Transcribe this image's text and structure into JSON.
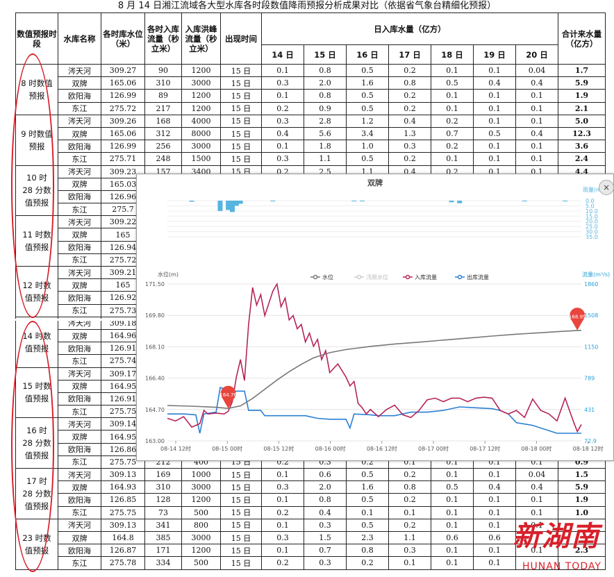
{
  "title": "8 月 14 日湘江流域各大型水库各时段数值降雨预报分析成果对比（依据省气象台精细化预报）",
  "headers": {
    "period": "数值预报时段",
    "reservoir": "水库名称",
    "level": "各时库水位（米）",
    "inflow": "各时入库流量（秒立米）",
    "peak": "入库洪峰流量（秒立米）",
    "time": "出现时间",
    "daily": "日入库水量（亿方）",
    "total": "合计来水量（亿方）",
    "days": [
      "14 日",
      "15 日",
      "16 日",
      "17 日",
      "18 日",
      "19 日",
      "20 日"
    ]
  },
  "groups": [
    {
      "period": "8 时数值预报",
      "rows": [
        [
          "涔天河",
          "309.27",
          "90",
          "1200",
          "15 日",
          "0.1",
          "0.8",
          "0.5",
          "0.2",
          "0.1",
          "0.1",
          "0.04",
          "1.7"
        ],
        [
          "双牌",
          "165.06",
          "310",
          "3000",
          "15 日",
          "0.3",
          "2.0",
          "1.6",
          "0.8",
          "0.5",
          "0.4",
          "0.4",
          "5.9"
        ],
        [
          "欧阳海",
          "126.99",
          "89",
          "1200",
          "15 日",
          "0.1",
          "0.8",
          "0.5",
          "0.2",
          "0.1",
          "0.1",
          "0.1",
          "1.9"
        ],
        [
          "东江",
          "275.72",
          "217",
          "1200",
          "15 日",
          "0.2",
          "0.9",
          "0.5",
          "0.2",
          "0.1",
          "0.1",
          "0.1",
          "2.1"
        ]
      ]
    },
    {
      "period": "9 时数值预报",
      "rows": [
        [
          "涔天河",
          "309.26",
          "168",
          "4000",
          "15 日",
          "0.3",
          "2.8",
          "1.2",
          "0.4",
          "0.2",
          "0.1",
          "0.1",
          "5.0"
        ],
        [
          "双牌",
          "165.06",
          "312",
          "8000",
          "15 日",
          "0.4",
          "5.6",
          "3.4",
          "1.3",
          "0.7",
          "0.5",
          "0.4",
          "12.3"
        ],
        [
          "欧阳海",
          "126.99",
          "256",
          "3000",
          "15 日",
          "0.1",
          "1.8",
          "1.0",
          "0.3",
          "0.2",
          "0.1",
          "0.1",
          "3.6"
        ],
        [
          "东江",
          "275.71",
          "248",
          "1500",
          "15 日",
          "0.3",
          "1.1",
          "0.5",
          "0.2",
          "0.1",
          "0.1",
          "0.1",
          "2.4"
        ]
      ]
    },
    {
      "period": "10 时 28 分数值预报",
      "rows": [
        [
          "涔天河",
          "309.23",
          "157",
          "3400",
          "15 日",
          "0.2",
          "2.5",
          "1.1",
          "0.4",
          "0.2",
          "0.1",
          "0.1",
          "4.4"
        ],
        [
          "双牌",
          "165.03",
          "",
          "",
          "",
          "",
          "",
          "",
          "",
          "",
          "",
          "",
          ""
        ],
        [
          "欧阳海",
          "126.96",
          "",
          "",
          "",
          "",
          "",
          "",
          "",
          "",
          "",
          "",
          ""
        ],
        [
          "东江",
          "275.7",
          "",
          "",
          "",
          "",
          "",
          "",
          "",
          "",
          "",
          "",
          ""
        ]
      ]
    },
    {
      "period": "11 时数值预报",
      "rows": [
        [
          "涔天河",
          "309.22",
          "",
          "",
          "",
          "",
          "",
          "",
          "",
          "",
          "",
          "",
          ""
        ],
        [
          "双牌",
          "165",
          "",
          "",
          "",
          "",
          "",
          "",
          "",
          "",
          "",
          "",
          ""
        ],
        [
          "欧阳海",
          "126.94",
          "",
          "",
          "",
          "",
          "",
          "",
          "",
          "",
          "",
          "",
          ""
        ],
        [
          "东江",
          "275.72",
          "",
          "",
          "",
          "",
          "",
          "",
          "",
          "",
          "",
          "",
          ""
        ]
      ]
    },
    {
      "period": "12 时数值预报",
      "rows": [
        [
          "涔天河",
          "309.21",
          "",
          "",
          "",
          "",
          "",
          "",
          "",
          "",
          "",
          "",
          ""
        ],
        [
          "双牌",
          "165",
          "",
          "",
          "",
          "",
          "",
          "",
          "",
          "",
          "",
          "",
          ""
        ],
        [
          "欧阳海",
          "126.92",
          "",
          "",
          "",
          "",
          "",
          "",
          "",
          "",
          "",
          "",
          ""
        ],
        [
          "东江",
          "275.73",
          "",
          "",
          "",
          "",
          "",
          "",
          "",
          "",
          "",
          "",
          ""
        ]
      ]
    },
    {
      "period": "14 时数值预报",
      "rows": [
        [
          "涔天河",
          "309.18",
          "",
          "",
          "",
          "",
          "",
          "",
          "",
          "",
          "",
          "",
          ""
        ],
        [
          "双牌",
          "164.96",
          "",
          "",
          "",
          "",
          "",
          "",
          "",
          "",
          "",
          "",
          ""
        ],
        [
          "欧阳海",
          "126.91",
          "",
          "",
          "",
          "",
          "",
          "",
          "",
          "",
          "",
          "",
          ""
        ],
        [
          "东江",
          "275.74",
          "",
          "",
          "",
          "",
          "",
          "",
          "",
          "",
          "",
          "",
          ""
        ]
      ]
    },
    {
      "period": "15 时数值预报",
      "rows": [
        [
          "涔天河",
          "309.17",
          "",
          "",
          "",
          "",
          "",
          "",
          "",
          "",
          "",
          "",
          ""
        ],
        [
          "双牌",
          "164.95",
          "",
          "",
          "",
          "",
          "",
          "",
          "",
          "",
          "",
          "",
          ""
        ],
        [
          "欧阳海",
          "126.91",
          "",
          "",
          "",
          "",
          "",
          "",
          "",
          "",
          "",
          "",
          ""
        ],
        [
          "东江",
          "275.75",
          "",
          "",
          "",
          "",
          "",
          "",
          "",
          "",
          "",
          "",
          ""
        ]
      ]
    },
    {
      "period": "16 时 28 分数值预报",
      "rows": [
        [
          "涔天河",
          "309.14",
          "",
          "",
          "",
          "",
          "",
          "",
          "",
          "",
          "",
          "",
          ""
        ],
        [
          "双牌",
          "164.95",
          "",
          "",
          "",
          "",
          "",
          "",
          "",
          "",
          "",
          "",
          ""
        ],
        [
          "欧阳海",
          "126.86",
          "",
          "",
          "",
          "",
          "",
          "",
          "",
          "",
          "",
          "",
          ""
        ],
        [
          "东江",
          "275.75",
          "212",
          "400",
          "15 日",
          "0.2",
          "0.3",
          "0.2",
          "0.1",
          "0.1",
          "0.1",
          "0.1",
          "0.9"
        ]
      ]
    },
    {
      "period": "17 时 28 分数值预报",
      "rows": [
        [
          "涔天河",
          "309.13",
          "169",
          "1000",
          "15 日",
          "0.1",
          "0.6",
          "0.5",
          "0.2",
          "0.1",
          "0.1",
          "0.04",
          "1.5"
        ],
        [
          "双牌",
          "164.93",
          "310",
          "3000",
          "15 日",
          "0.3",
          "2.0",
          "1.6",
          "0.8",
          "0.5",
          "0.4",
          "0.4",
          "5.9"
        ],
        [
          "欧阳海",
          "126.85",
          "128",
          "1200",
          "15 日",
          "0.1",
          "0.8",
          "0.5",
          "0.2",
          "0.1",
          "0.1",
          "0.1",
          "1.9"
        ],
        [
          "东江",
          "275.75",
          "73",
          "500",
          "15 日",
          "0.2",
          "0.4",
          "0.1",
          "0.1",
          "0.1",
          "0.1",
          "0.1",
          "1.0"
        ]
      ]
    },
    {
      "period": "23 时数值预报",
      "rows": [
        [
          "涔天河",
          "309.13",
          "341",
          "800",
          "15 日",
          "0.1",
          "0.3",
          "0.5",
          "0.2",
          "0.1",
          "0.1",
          "0.1",
          ""
        ],
        [
          "双牌",
          "164.8",
          "385",
          "3000",
          "15 日",
          "0.3",
          "1.5",
          "2.3",
          "1.1",
          "0.6",
          "0.6",
          "",
          ""
        ],
        [
          "欧阳海",
          "126.87",
          "171",
          "1200",
          "15 日",
          "0.1",
          "0.7",
          "0.8",
          "0.3",
          "0.1",
          "0.1",
          "0.1",
          "2.3"
        ],
        [
          "东江",
          "275.78",
          "334",
          "500",
          "15 日",
          "0.2",
          "0.3",
          "0.2",
          "0.1",
          "0.1",
          "0.1",
          "",
          ""
        ]
      ]
    }
  ],
  "chart": {
    "title": "双牌",
    "rain_axis_label": "雨量(mm)",
    "left_axis_label": "水位(m)",
    "right_axis_label": "流量(m³/s)",
    "legend": [
      "水位",
      "汛限水位",
      "入库流量",
      "出库流量"
    ],
    "close_icon": "×",
    "marker_start": "164.76",
    "marker_end": "168.99",
    "colors": {
      "level": "#777777",
      "flood_limit": "#cccccc",
      "inflow": "#b5235a",
      "outflow": "#2a7fd4",
      "rain": "#56b4e0",
      "marker": "#e8453c"
    }
  },
  "chart_data": {
    "type": "line",
    "title": "双牌",
    "x_ticks": [
      "08-14 12时",
      "08-15 00时",
      "08-15 12时",
      "08-16 00时",
      "08-16 12时",
      "08-17 00时",
      "08-17 12时",
      "08-18 00时",
      "08-18 12时"
    ],
    "ylabel_left": "水位(m)",
    "ylabel_right": "流量(m³/s)",
    "y_left_ticks": [
      "171.50",
      "169.80",
      "168.10",
      "166.40",
      "164.70",
      "163.00"
    ],
    "y_right_ticks": [
      "1860",
      "1508",
      "1150",
      "789",
      "431",
      "72.9"
    ],
    "rain_ticks": [
      "0.0",
      "5.0",
      "10.0",
      "15.0",
      "20.0",
      "25.0",
      "30.0",
      "35.0"
    ],
    "ylim_left": [
      163.0,
      171.5
    ],
    "ylim_right": [
      72.9,
      1860
    ],
    "ylim_rain": [
      0,
      35
    ],
    "x_range_hours": [
      0,
      102
    ],
    "series": [
      {
        "name": "水位",
        "points": [
          [
            0,
            164.92
          ],
          [
            6,
            164.88
          ],
          [
            12,
            164.82
          ],
          [
            15,
            164.76
          ],
          [
            18,
            164.9
          ],
          [
            21,
            165.3
          ],
          [
            24,
            165.8
          ],
          [
            27,
            166.3
          ],
          [
            30,
            166.75
          ],
          [
            33,
            167.15
          ],
          [
            36,
            167.5
          ],
          [
            40,
            167.78
          ],
          [
            44,
            167.95
          ],
          [
            50,
            168.12
          ],
          [
            56,
            168.25
          ],
          [
            62,
            168.35
          ],
          [
            68,
            168.46
          ],
          [
            74,
            168.57
          ],
          [
            80,
            168.68
          ],
          [
            86,
            168.78
          ],
          [
            92,
            168.86
          ],
          [
            97,
            168.93
          ],
          [
            102,
            168.99
          ]
        ]
      },
      {
        "name": "入库流量",
        "points": [
          [
            0,
            330
          ],
          [
            2,
            300
          ],
          [
            4,
            350
          ],
          [
            6,
            230
          ],
          [
            8,
            270
          ],
          [
            9,
            420
          ],
          [
            10,
            380
          ],
          [
            12,
            390
          ],
          [
            14,
            380
          ],
          [
            15,
            410
          ],
          [
            16,
            520
          ],
          [
            17,
            800
          ],
          [
            18,
            1000
          ],
          [
            19,
            760
          ],
          [
            20,
            1400
          ],
          [
            21,
            1820
          ],
          [
            22,
            1620
          ],
          [
            23,
            1740
          ],
          [
            24,
            1500
          ],
          [
            25,
            1640
          ],
          [
            26,
            1780
          ],
          [
            27,
            1860
          ],
          [
            28,
            1600
          ],
          [
            29,
            1700
          ],
          [
            30,
            1450
          ],
          [
            31,
            1500
          ],
          [
            32,
            1350
          ],
          [
            33,
            1400
          ],
          [
            34,
            1200
          ],
          [
            35,
            1300
          ],
          [
            36,
            1150
          ],
          [
            37,
            1230
          ],
          [
            38,
            1000
          ],
          [
            39,
            1100
          ],
          [
            40,
            850
          ],
          [
            42,
            950
          ],
          [
            44,
            800
          ],
          [
            45,
            700
          ],
          [
            46,
            750
          ],
          [
            47,
            500
          ],
          [
            48,
            450
          ],
          [
            49,
            380
          ],
          [
            50,
            430
          ],
          [
            52,
            350
          ],
          [
            54,
            430
          ],
          [
            56,
            480
          ],
          [
            58,
            370
          ],
          [
            60,
            340
          ],
          [
            62,
            420
          ],
          [
            64,
            540
          ],
          [
            66,
            560
          ],
          [
            68,
            520
          ],
          [
            70,
            560
          ],
          [
            72,
            560
          ],
          [
            74,
            520
          ],
          [
            76,
            560
          ],
          [
            78,
            570
          ],
          [
            80,
            560
          ],
          [
            82,
            420
          ],
          [
            84,
            380
          ],
          [
            86,
            420
          ],
          [
            88,
            340
          ],
          [
            90,
            550
          ],
          [
            92,
            420
          ],
          [
            94,
            380
          ],
          [
            96,
            300
          ],
          [
            98,
            560
          ],
          [
            100,
            300
          ],
          [
            101,
            180
          ],
          [
            102,
            260
          ]
        ]
      },
      {
        "name": "出库流量",
        "points": [
          [
            0,
            380
          ],
          [
            4,
            380
          ],
          [
            7,
            370
          ],
          [
            8,
            160
          ],
          [
            9,
            380
          ],
          [
            12,
            400
          ],
          [
            13,
            680
          ],
          [
            16,
            640
          ],
          [
            19,
            640
          ],
          [
            20,
            420
          ],
          [
            23,
            420
          ],
          [
            24,
            360
          ],
          [
            34,
            360
          ],
          [
            37,
            330
          ],
          [
            40,
            320
          ],
          [
            44,
            320
          ],
          [
            45,
            220
          ],
          [
            46,
            380
          ],
          [
            50,
            370
          ],
          [
            52,
            360
          ],
          [
            56,
            360
          ],
          [
            60,
            400
          ],
          [
            64,
            400
          ],
          [
            68,
            420
          ],
          [
            72,
            460
          ],
          [
            76,
            450
          ],
          [
            80,
            440
          ],
          [
            82,
            420
          ],
          [
            84,
            380
          ],
          [
            86,
            280
          ],
          [
            90,
            250
          ],
          [
            96,
            160
          ],
          [
            102,
            160
          ]
        ]
      }
    ],
    "rain_bars": [
      [
        6,
        1
      ],
      [
        13,
        10
      ],
      [
        15,
        9
      ],
      [
        16,
        11
      ],
      [
        17,
        5
      ],
      [
        18,
        3
      ],
      [
        26,
        0.5
      ],
      [
        46,
        0.3
      ],
      [
        48,
        0.4
      ],
      [
        70,
        1.5
      ],
      [
        72,
        2.5
      ],
      [
        88,
        0.3
      ],
      [
        98,
        0.3
      ]
    ]
  },
  "watermark": {
    "cn": "新湖南",
    "en": "HUNAN TODAY"
  }
}
